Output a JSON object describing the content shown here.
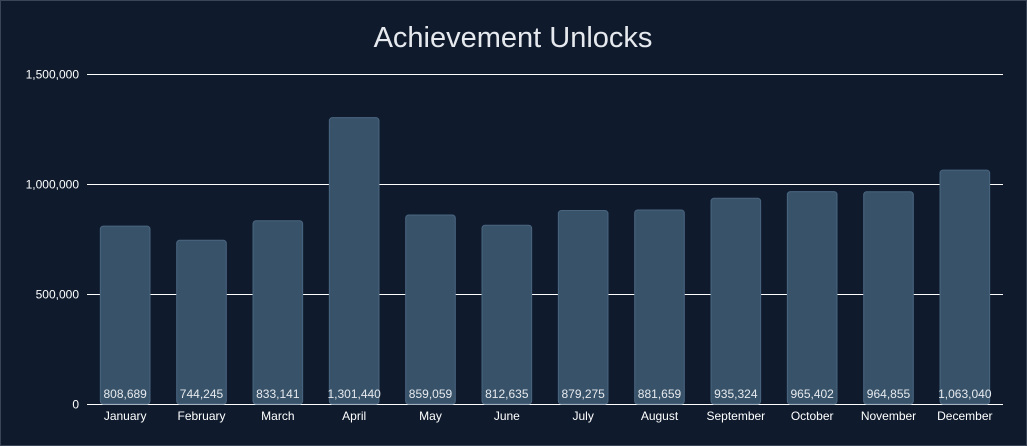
{
  "chart_data": {
    "type": "bar",
    "title": "Achievement Unlocks",
    "xlabel": "",
    "ylabel": "",
    "categories": [
      "January",
      "February",
      "March",
      "April",
      "May",
      "June",
      "July",
      "August",
      "September",
      "October",
      "November",
      "December"
    ],
    "values": [
      808689,
      744245,
      833141,
      1301440,
      859059,
      812635,
      879275,
      881659,
      935324,
      965402,
      964855,
      1063040
    ],
    "data_labels": [
      "808,689",
      "744,245",
      "833,141",
      "1,301,440",
      "859,059",
      "812,635",
      "879,275",
      "881,659",
      "935,324",
      "965,402",
      "964,855",
      "1,063,040"
    ],
    "ylim": [
      0,
      1500000
    ],
    "y_ticks": [
      0,
      500000,
      1000000,
      1500000
    ],
    "y_tick_labels": [
      "0",
      "500,000",
      "1,000,000",
      "1,500,000"
    ],
    "grid": true,
    "legend": "none"
  },
  "colors": {
    "background": "#0f1b2d",
    "bar": "#385369",
    "bar_stroke": "#4a6580",
    "grid": "#ffffff",
    "text": "#ffffff",
    "title": "#e6e9ee"
  }
}
